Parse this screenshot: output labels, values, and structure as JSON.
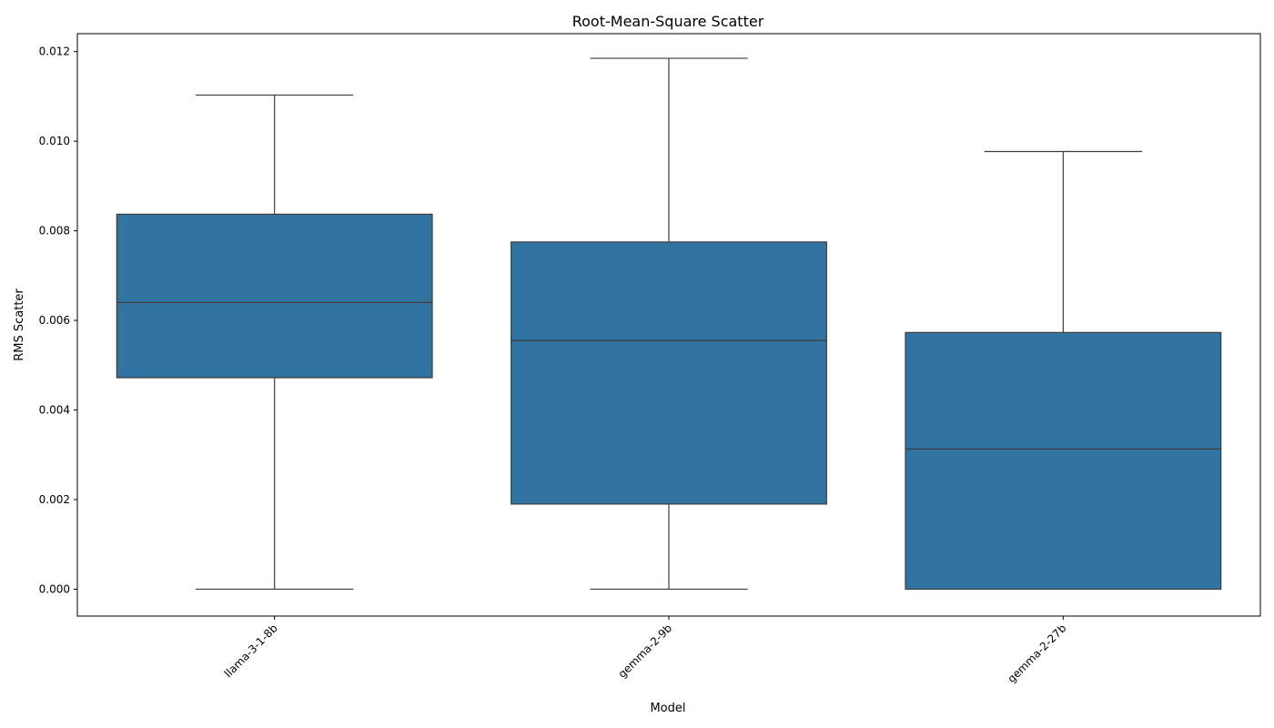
{
  "chart_data": {
    "type": "box",
    "title": "Root-Mean-Square Scatter",
    "xlabel": "Model",
    "ylabel": "RMS Scatter",
    "ylim": [
      -0.0006,
      0.0124
    ],
    "yticks": [
      "0.000",
      "0.002",
      "0.004",
      "0.006",
      "0.008",
      "0.010",
      "0.012"
    ],
    "grid": false,
    "box_color": "#3274a1",
    "line_color": "#3d3d3d",
    "categories": [
      "llama-3-1-8b",
      "gemma-2-9b",
      "gemma-2-27b"
    ],
    "boxes": [
      {
        "whisker_low": 0.0,
        "q1": 0.00472,
        "median": 0.0064,
        "q3": 0.00837,
        "whisker_high": 0.01103
      },
      {
        "whisker_low": 0.0,
        "q1": 0.0019,
        "median": 0.00555,
        "q3": 0.00775,
        "whisker_high": 0.01185
      },
      {
        "whisker_low": 0.0,
        "q1": 0.0,
        "median": 0.00313,
        "q3": 0.00573,
        "whisker_high": 0.00977
      }
    ]
  }
}
